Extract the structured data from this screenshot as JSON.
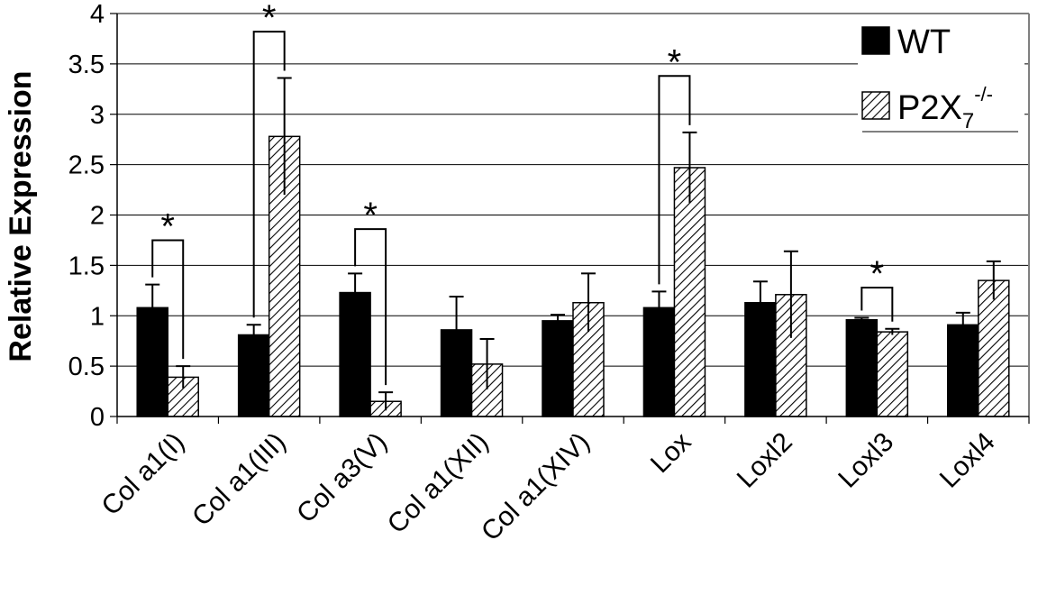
{
  "chart_data": {
    "type": "bar",
    "ylabel": "Relative Expression",
    "xlabel": "",
    "ylim": [
      0,
      4
    ],
    "yticks": [
      "0",
      "0.5",
      "1",
      "1.5",
      "2",
      "2.5",
      "3",
      "3.5",
      "4"
    ],
    "grid": true,
    "legend_position": "top-right",
    "categories": [
      "Col a1(I)",
      "Col a1(III)",
      "Col a3(V)",
      "Col a1(XII)",
      "Col a1(XIV)",
      "Lox",
      "Loxl2",
      "Loxl3",
      "Loxl4"
    ],
    "series": [
      {
        "name": "WT",
        "fill": "solid",
        "color": "#000000",
        "values": [
          1.08,
          0.81,
          1.23,
          0.86,
          0.95,
          1.08,
          1.13,
          0.96,
          0.91
        ],
        "errors": [
          0.23,
          0.1,
          0.19,
          0.33,
          0.06,
          0.16,
          0.21,
          0.02,
          0.12
        ]
      },
      {
        "name": "P2X7-/-",
        "fill": "hatched",
        "color": "#000000",
        "values": [
          0.39,
          2.78,
          0.15,
          0.52,
          1.13,
          2.47,
          1.21,
          0.84,
          1.35
        ],
        "errors": [
          0.11,
          0.58,
          0.09,
          0.25,
          0.29,
          0.35,
          0.43,
          0.03,
          0.19
        ]
      }
    ],
    "legend": {
      "wt_label": "WT",
      "ko_label": "P2X",
      "ko_subscript": "7",
      "ko_superscript": "-/-"
    },
    "significance": [
      {
        "category_index": 0,
        "label": "*",
        "bracket_y": 1.75
      },
      {
        "category_index": 1,
        "label": "*",
        "bracket_y": 3.82
      },
      {
        "category_index": 2,
        "label": "*",
        "bracket_y": 1.86
      },
      {
        "category_index": 5,
        "label": "*",
        "bracket_y": 3.38
      },
      {
        "category_index": 7,
        "label": "*",
        "bracket_y": 1.28
      }
    ]
  }
}
